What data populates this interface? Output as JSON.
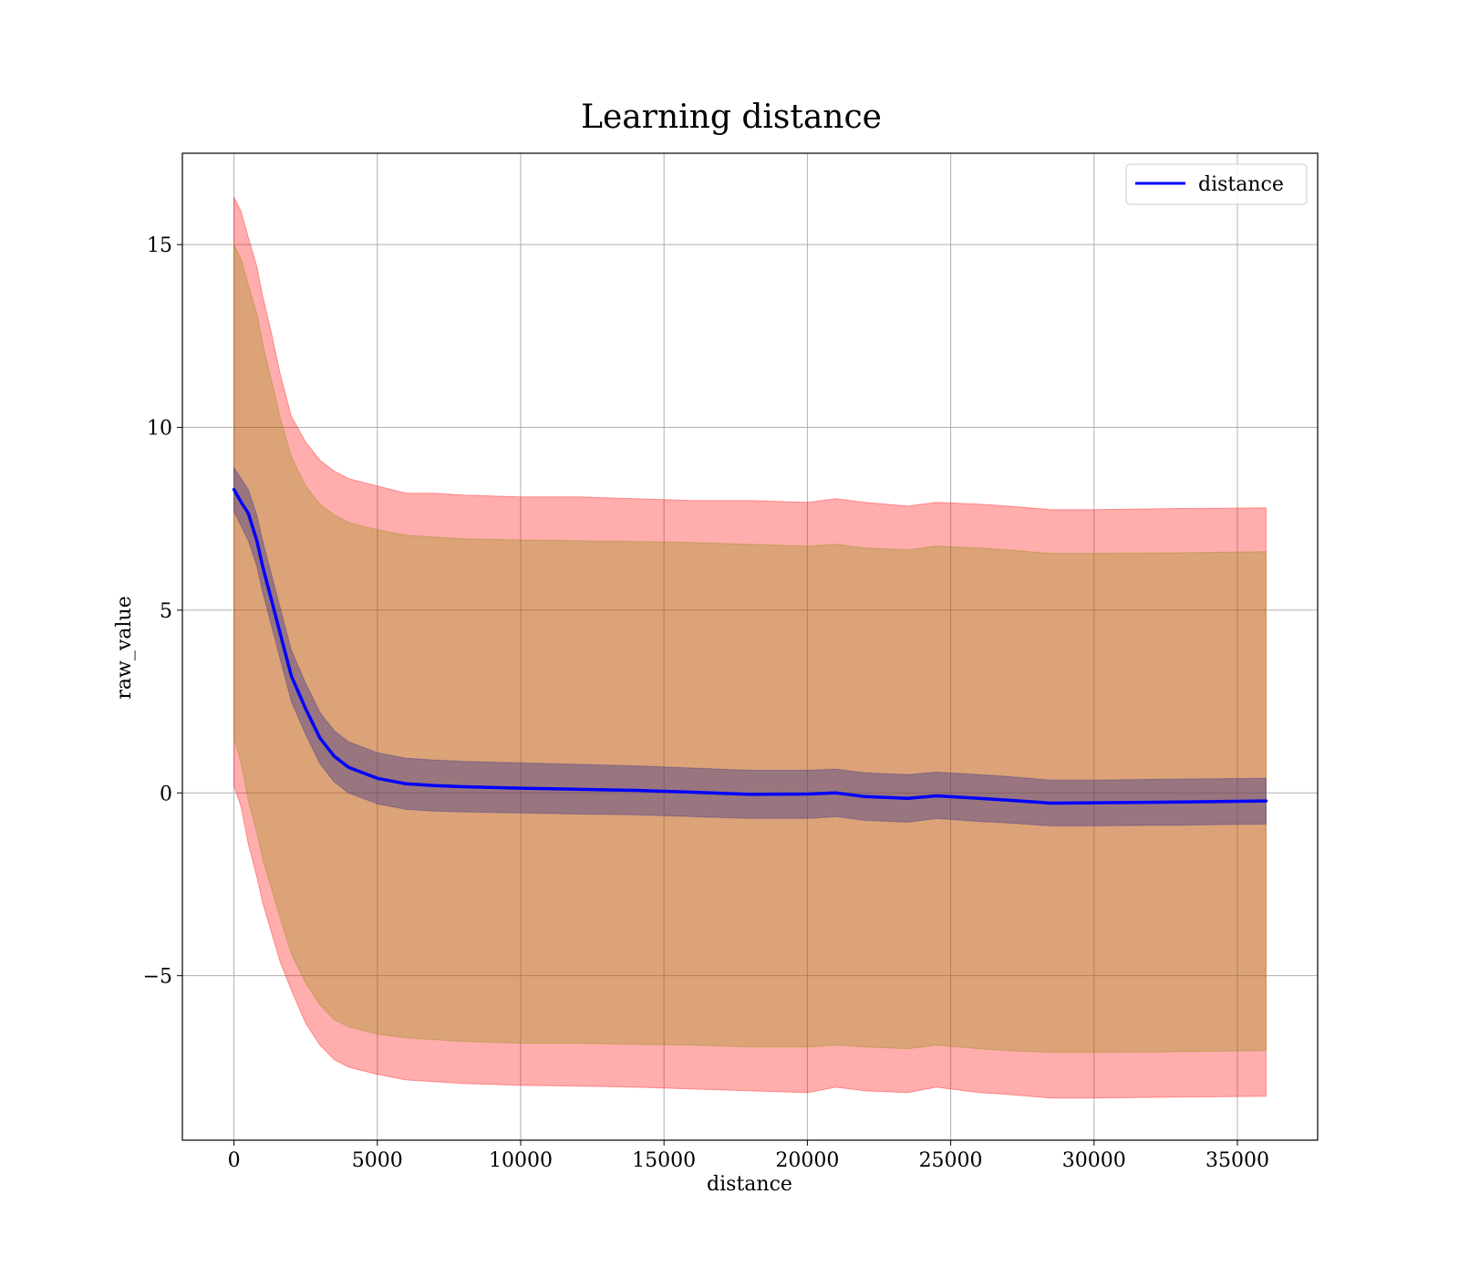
{
  "chart_data": {
    "type": "area",
    "title": "Learning distance",
    "xlabel": "distance",
    "ylabel": "raw_value",
    "xlim": [
      -1800,
      37800
    ],
    "ylim": [
      -9.5,
      17.5
    ],
    "grid": true,
    "legend": {
      "placement": "top-right",
      "entries": [
        "distance"
      ]
    },
    "xticks": [
      {
        "value": 0,
        "label": "0"
      },
      {
        "value": 5000,
        "label": "5000"
      },
      {
        "value": 10000,
        "label": "10000"
      },
      {
        "value": 15000,
        "label": "15000"
      },
      {
        "value": 20000,
        "label": "20000"
      },
      {
        "value": 25000,
        "label": "25000"
      },
      {
        "value": 30000,
        "label": "30000"
      },
      {
        "value": 35000,
        "label": "35000"
      }
    ],
    "yticks": [
      {
        "value": -5,
        "label": "−5"
      },
      {
        "value": 0,
        "label": "0"
      },
      {
        "value": 5,
        "label": "5"
      },
      {
        "value": 10,
        "label": "10"
      },
      {
        "value": 15,
        "label": "15"
      }
    ],
    "x": [
      0,
      250,
      500,
      800,
      1000,
      1300,
      1600,
      2000,
      2500,
      3000,
      3500,
      4000,
      5000,
      6000,
      7000,
      8000,
      10000,
      12000,
      14000,
      16000,
      18000,
      20000,
      21000,
      22000,
      23500,
      24500,
      26000,
      27000,
      28500,
      30000,
      33000,
      36000
    ],
    "series": [
      {
        "name": "distance",
        "color": "#0000ff",
        "values": [
          8.3,
          7.95,
          7.65,
          6.9,
          6.2,
          5.3,
          4.4,
          3.2,
          2.3,
          1.5,
          1.0,
          0.7,
          0.4,
          0.25,
          0.2,
          0.17,
          0.13,
          0.1,
          0.07,
          0.02,
          -0.04,
          -0.03,
          0.0,
          -0.1,
          -0.15,
          -0.08,
          -0.15,
          -0.2,
          -0.28,
          -0.27,
          -0.25,
          -0.22
        ]
      }
    ],
    "bands": [
      {
        "color": "#ff0000",
        "opacity": 0.32,
        "lower": [
          0.2,
          -0.4,
          -1.4,
          -2.3,
          -3.0,
          -3.8,
          -4.6,
          -5.4,
          -6.3,
          -6.9,
          -7.3,
          -7.5,
          -7.7,
          -7.85,
          -7.9,
          -7.95,
          -8.0,
          -8.02,
          -8.05,
          -8.1,
          -8.15,
          -8.2,
          -8.05,
          -8.15,
          -8.2,
          -8.05,
          -8.2,
          -8.25,
          -8.35,
          -8.35,
          -8.32,
          -8.3
        ],
        "upper": [
          16.3,
          15.9,
          15.2,
          14.4,
          13.6,
          12.6,
          11.5,
          10.3,
          9.6,
          9.1,
          8.8,
          8.6,
          8.4,
          8.2,
          8.2,
          8.15,
          8.1,
          8.1,
          8.05,
          8.0,
          8.0,
          7.95,
          8.05,
          7.95,
          7.85,
          7.95,
          7.9,
          7.85,
          7.75,
          7.75,
          7.78,
          7.8
        ]
      },
      {
        "color": "#8b8b00",
        "opacity": 0.3,
        "lower": [
          1.5,
          0.8,
          -0.2,
          -1.1,
          -1.8,
          -2.6,
          -3.4,
          -4.4,
          -5.2,
          -5.8,
          -6.2,
          -6.4,
          -6.6,
          -6.7,
          -6.75,
          -6.8,
          -6.85,
          -6.85,
          -6.88,
          -6.9,
          -6.95,
          -6.95,
          -6.9,
          -6.95,
          -7.0,
          -6.9,
          -7.0,
          -7.05,
          -7.1,
          -7.1,
          -7.08,
          -7.05
        ],
        "upper": [
          15.0,
          14.6,
          13.9,
          13.1,
          12.3,
          11.3,
          10.3,
          9.2,
          8.4,
          7.9,
          7.6,
          7.4,
          7.2,
          7.05,
          7.0,
          6.95,
          6.92,
          6.9,
          6.88,
          6.85,
          6.8,
          6.75,
          6.8,
          6.7,
          6.65,
          6.75,
          6.7,
          6.65,
          6.55,
          6.55,
          6.57,
          6.6
        ]
      },
      {
        "color": "#2e2e8b",
        "opacity": 0.38,
        "lower": [
          7.7,
          7.3,
          6.9,
          6.2,
          5.5,
          4.6,
          3.7,
          2.5,
          1.6,
          0.8,
          0.3,
          0.0,
          -0.3,
          -0.45,
          -0.5,
          -0.52,
          -0.55,
          -0.58,
          -0.6,
          -0.65,
          -0.7,
          -0.7,
          -0.65,
          -0.75,
          -0.8,
          -0.7,
          -0.78,
          -0.82,
          -0.9,
          -0.9,
          -0.88,
          -0.85
        ],
        "upper": [
          8.9,
          8.6,
          8.3,
          7.6,
          6.9,
          6.0,
          5.1,
          3.9,
          3.0,
          2.2,
          1.7,
          1.4,
          1.1,
          0.95,
          0.9,
          0.86,
          0.82,
          0.78,
          0.74,
          0.68,
          0.62,
          0.62,
          0.65,
          0.55,
          0.5,
          0.57,
          0.5,
          0.45,
          0.35,
          0.35,
          0.38,
          0.4
        ]
      }
    ]
  }
}
